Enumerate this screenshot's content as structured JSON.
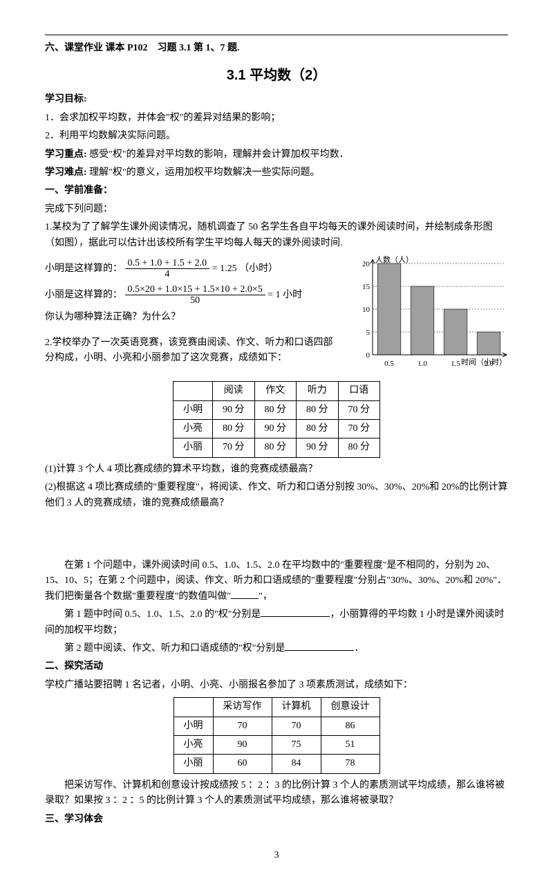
{
  "top_hw": "六、课堂作业  课本 P102　习题 3.1 第 1、7 题.",
  "title": "3.1 平均数（2）",
  "obj_h": "学习目标:",
  "obj1": "1．会求加权平均数，并体会\"权\"的差异对结果的影响；",
  "obj2": "2．利用平均数解决实际问题。",
  "keypoint_h": "学习重点:",
  "keypoint": "感受\"权\"的差异对平均数的影响，理解并会计算加权平均数．",
  "diff_h": "学习难点:",
  "diff": "理解\"权\"的意义，运用加权平均数解决一些实际问题。",
  "prep_h": "一、学前准备：",
  "prep_sub": "完成下列问题：",
  "q1_stem": "1.某校为了了解学生课外阅读情况，随机调查了 50 名学生各自平均每天的课外阅读时间，并绘制成条形图（如图），据此可以估计出该校所有学生平均每人每天的课外阅读时间.",
  "xm_label": "小明是这样算的：",
  "xm_num": "0.5 + 1.0 + 1.5 + 2.0",
  "xm_den": "4",
  "xm_res": "= 1.25 （小时）",
  "xl_label": "小丽是这样算的：",
  "xl_num": "0.5×20 + 1.0×15 + 1.5×10 + 2.0×5",
  "xl_den": "50",
  "xl_res": "= 1 小时",
  "q1_ask": "你认为哪种算法正确？为什么？",
  "q2_stem": "2.学校举办了一次英语竞赛，该竞赛由阅读、作文、听力和口语四部分构成，小明、小亮和小丽参加了这次竞赛，成绩如下：",
  "chart": {
    "ylabel": "人数（人）",
    "xlabel": "时间（小时）",
    "ytick_max": 20,
    "ytick_step": 5,
    "categories": [
      "0.5",
      "1.0",
      "1.5",
      "2.0"
    ],
    "values": [
      20,
      15,
      10,
      5
    ],
    "bar_color": "#9f9f9f",
    "grid_color": "#000000",
    "axis_color": "#000000",
    "bar_width": 0.7
  },
  "t1": {
    "headers": [
      "",
      "阅读",
      "作文",
      "听力",
      "口语"
    ],
    "rows": [
      [
        "小明",
        "90 分",
        "80 分",
        "80 分",
        "70 分"
      ],
      [
        "小亮",
        "80 分",
        "90 分",
        "80 分",
        "70 分"
      ],
      [
        "小丽",
        "70 分",
        "80 分",
        "90 分",
        "80 分"
      ]
    ]
  },
  "q2_1": "(1)计算 3 个人 4 项比赛成绩的算术平均数，谁的竞赛成绩最高？",
  "q2_2": "(2)根据这 4 项比赛成绩的\"重要程度\"，将阅读、作文、听力和口语分别按 30%、30%、20%和 20%的比例计算他们 3 人的竞赛成绩，谁的竞赛成绩最高？",
  "para1_a": "在第 1 个问题中，课外阅读时间 0.5、1.0、1.5、2.0 在平均数中的\"重要程度\"是不相同的，分别为 20、15、10、5；在第 2 个问题中，阅读、作文、听力和口语成绩的\"重要程度\"分别占\"30%、30%、20%和 20%\"．我们把衡量各个数据\"重要程度\"的数值叫做\"",
  "para1_b": "\"，",
  "para2_a": "第 1 题中时间 0.5、1.0、1.5、2.0 的\"权\"分别是",
  "para2_b": "，小丽算得的平均数 1 小时是课外阅读时间的加权平均数；",
  "para3_a": "第 2 题中阅读、作文、听力和口语成绩的\"权\"分别是",
  "para3_b": "．",
  "explore_h": "二、探究活动",
  "explore_stem": "学校广播站要招聘 1 名记者，小明、小亮、小丽报名参加了 3 项素质测试，成绩如下：",
  "t2": {
    "headers": [
      "",
      "采访写作",
      "计算机",
      "创意设计"
    ],
    "rows": [
      [
        "小明",
        "70",
        "70",
        "86"
      ],
      [
        "小亮",
        "90",
        "75",
        "51"
      ],
      [
        "小丽",
        "60",
        "84",
        "78"
      ]
    ]
  },
  "explore_q": "把采访写作、计算机和创意设计按成绩按 5 ：2 ：3 的比例计算 3 个人的素质测试平均成绩，那么谁将被录取？如果按 3 ：2 ：5 的比例计算 3 个人的素质测试平均成绩，那么谁将被录取？",
  "reflect_h": "三、学习体会",
  "pagenum": "3"
}
